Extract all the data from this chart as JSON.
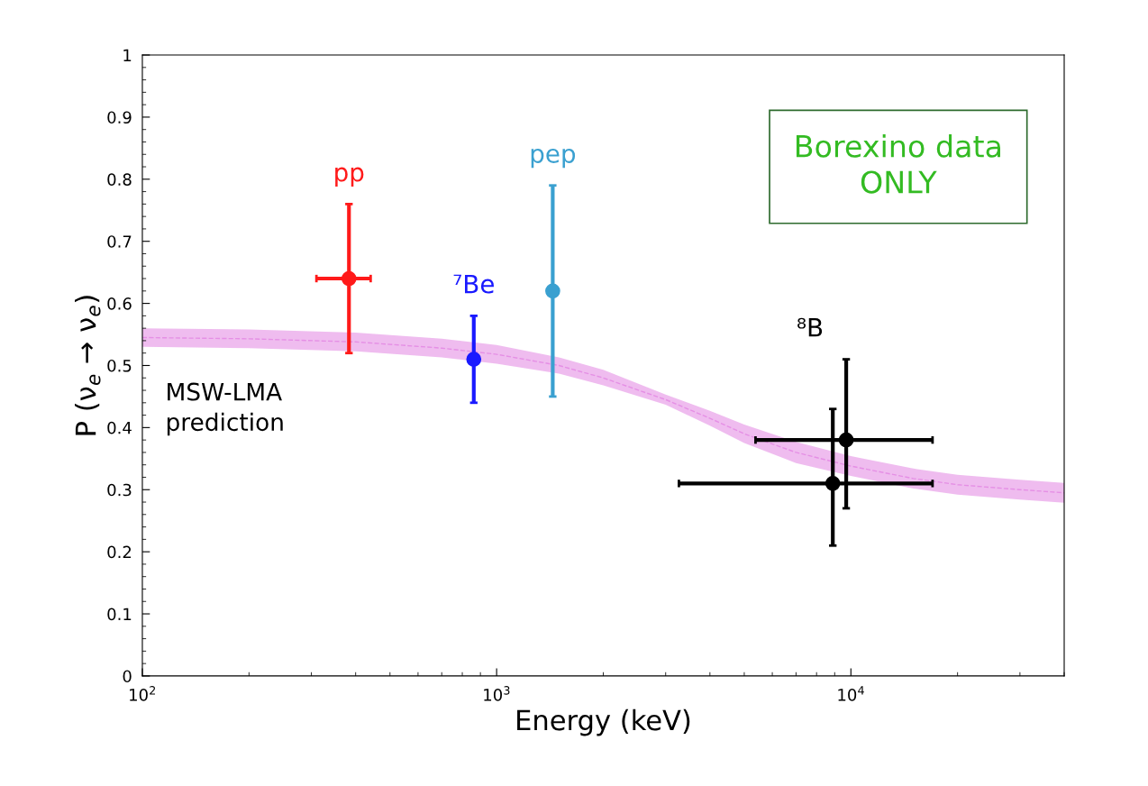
{
  "chart_data": {
    "type": "scatter",
    "xlabel": "Energy (keV)",
    "ylabel": "P (ν$_{e}$ → ν$_{e}$)",
    "log": "x",
    "xlim": [
      100,
      40000
    ],
    "xticks": [
      {
        "value": 100,
        "label": "10$^{2}$"
      },
      {
        "value": 1000,
        "label": "10$^{3}$"
      },
      {
        "value": 10000,
        "label": "10$^{4}$"
      }
    ],
    "ylim": [
      0,
      1
    ],
    "yticks": [
      0,
      0.1,
      0.2,
      0.3,
      0.4,
      0.5,
      0.6,
      0.7,
      0.8,
      0.9,
      1
    ],
    "grid": false,
    "marker": "circle",
    "series": [
      {
        "type": "line",
        "line_style": "dashed",
        "marker": "none",
        "color": "#e58fe5",
        "x": [
          100,
          200,
          400,
          700,
          1000,
          1500,
          2000,
          3000,
          4000,
          5000,
          7000,
          10000,
          15000,
          20000,
          30000,
          40000
        ],
        "values": [
          0.545,
          0.543,
          0.538,
          0.528,
          0.518,
          0.5,
          0.48,
          0.445,
          0.415,
          0.39,
          0.36,
          0.338,
          0.318,
          0.308,
          0.3,
          0.295
        ],
        "lower": [
          0.53,
          0.528,
          0.523,
          0.513,
          0.503,
          0.487,
          0.468,
          0.437,
          0.403,
          0.375,
          0.343,
          0.322,
          0.302,
          0.292,
          0.284,
          0.279
        ],
        "upper": [
          0.56,
          0.558,
          0.553,
          0.543,
          0.533,
          0.513,
          0.493,
          0.453,
          0.427,
          0.405,
          0.377,
          0.354,
          0.334,
          0.324,
          0.316,
          0.311
        ]
      },
      {
        "name": "pp",
        "color": "#ff1a1a",
        "x": [
          383
        ],
        "values": [
          0.64
        ],
        "errors": [
          [
            0.52,
            0.76
          ]
        ],
        "xerrors": [
          [
            310,
            441
          ]
        ]
      },
      {
        "name": "⁷Be",
        "color": "#1a1aff",
        "x": [
          862
        ],
        "values": [
          0.51
        ],
        "errors": [
          [
            0.44,
            0.58
          ]
        ]
      },
      {
        "name": "pep",
        "color": "#3aa0d0",
        "x": [
          1440
        ],
        "values": [
          0.62
        ],
        "errors": [
          [
            0.45,
            0.79
          ]
        ]
      },
      {
        "name": "⁸B",
        "color": "#000000",
        "x": [
          8890,
          9700
        ],
        "values": [
          0.31,
          0.38
        ],
        "errors": [
          [
            0.21,
            0.43
          ],
          [
            0.27,
            0.51
          ]
        ],
        "xerrors": [
          [
            3270,
            17000
          ],
          [
            5380,
            17000
          ]
        ]
      }
    ],
    "annotations": [
      "MSW-LMA\nprediction",
      "Borexino data\nONLY"
    ]
  }
}
